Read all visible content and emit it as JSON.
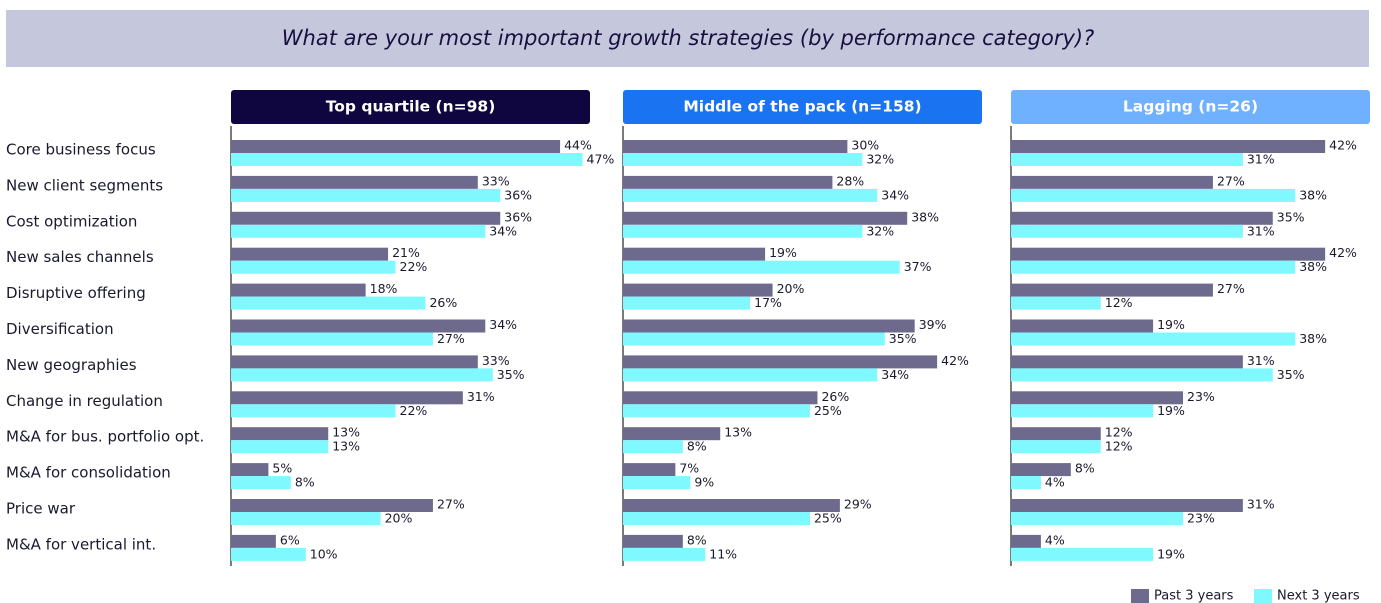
{
  "chart_data": {
    "type": "bar",
    "orientation": "horizontal",
    "title": "What are your most important growth strategies (by performance category)?",
    "categories": [
      "Core business focus",
      "New client segments",
      "Cost optimization",
      "New sales channels",
      "Disruptive offering",
      "Diversification",
      "New geographies",
      "Change in regulation",
      "M&A for bus. portfolio opt.",
      "M&A for consolidation",
      "Price war",
      "M&A for vertical int."
    ],
    "xlim": [
      0,
      48
    ],
    "legend": [
      {
        "name": "Past 3 years",
        "color": "#6e6a8e"
      },
      {
        "name": "Next 3 years",
        "color": "#80f8ff"
      }
    ],
    "panels": [
      {
        "title": "Top quartile (n=98)",
        "header_color": "#0f0640",
        "series": [
          {
            "values": [
              44,
              33,
              36,
              21,
              18,
              34,
              33,
              31,
              13,
              5,
              27,
              6
            ],
            "value_labels": [
              "44%",
              "33%",
              "36%",
              "21%",
              "18%",
              "34%",
              "33%",
              "31%",
              "13%",
              "5%",
              "27%",
              "6%"
            ]
          },
          {
            "values": [
              47,
              36,
              34,
              22,
              26,
              27,
              35,
              22,
              13,
              8,
              20,
              10
            ],
            "value_labels": [
              "47%",
              "36%",
              "34%",
              "22%",
              "26%",
              "27%",
              "35%",
              "22%",
              "13%",
              "8%",
              "20%",
              "10%"
            ]
          }
        ]
      },
      {
        "title": "Middle of the pack (n=158)",
        "header_color": "#1a73f0",
        "series": [
          {
            "values": [
              30,
              28,
              38,
              19,
              20,
              39,
              42,
              26,
              13,
              7,
              29,
              8
            ],
            "value_labels": [
              "30%",
              "28%",
              "38%",
              "19%",
              "20%",
              "39%",
              "42%",
              "26%",
              "13%",
              "7%",
              "29%",
              "8%"
            ]
          },
          {
            "values": [
              32,
              34,
              32,
              37,
              17,
              35,
              34,
              25,
              8,
              9,
              25,
              11
            ],
            "value_labels": [
              "32%",
              "34%",
              "32%",
              "37%",
              "17%",
              "35%",
              "34%",
              "25%",
              "8%",
              "9%",
              "25%",
              "11%"
            ]
          }
        ]
      },
      {
        "title": "Lagging (n=26)",
        "header_color": "#6fb0ff",
        "series": [
          {
            "values": [
              42,
              27,
              35,
              42,
              27,
              19,
              31,
              23,
              12,
              8,
              31,
              4
            ],
            "value_labels": [
              "42%",
              "27%",
              "35%",
              "42%",
              "27%",
              "19%",
              "31%",
              "23%",
              "12%",
              "8%",
              "31%",
              "4%"
            ]
          },
          {
            "values": [
              31,
              38,
              31,
              38,
              12,
              38,
              35,
              19,
              12,
              4,
              23,
              19
            ],
            "value_labels": [
              "31%",
              "38%",
              "31%",
              "38%",
              "12%",
              "38%",
              "35%",
              "19%",
              "12%",
              "4%",
              "23%",
              "19%"
            ]
          }
        ]
      }
    ]
  }
}
